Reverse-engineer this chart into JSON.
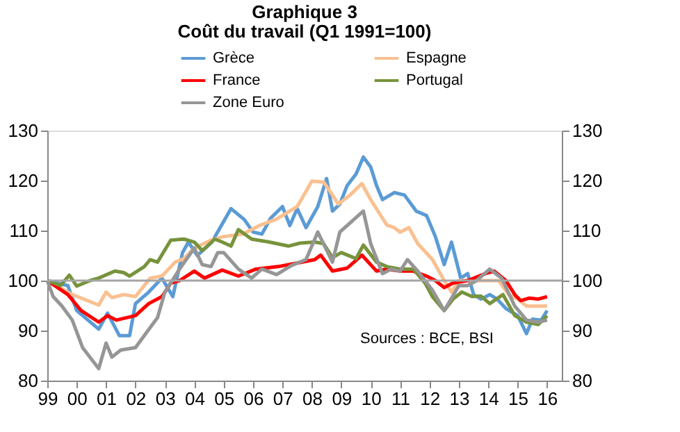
{
  "chart_data": {
    "type": "line",
    "title": "Graphique 3",
    "subtitle": "Coût du travail (Q1 1991=100)",
    "xlim": [
      1999,
      2016.5
    ],
    "xticks": [
      {
        "value": 1999,
        "label": "99"
      },
      {
        "value": 2000,
        "label": "00"
      },
      {
        "value": 2001,
        "label": "01"
      },
      {
        "value": 2002,
        "label": "02"
      },
      {
        "value": 2003,
        "label": "03"
      },
      {
        "value": 2004,
        "label": "04"
      },
      {
        "value": 2005,
        "label": "05"
      },
      {
        "value": 2006,
        "label": "06"
      },
      {
        "value": 2007,
        "label": "07"
      },
      {
        "value": 2008,
        "label": "08"
      },
      {
        "value": 2009,
        "label": "09"
      },
      {
        "value": 2010,
        "label": "10"
      },
      {
        "value": 2011,
        "label": "11"
      },
      {
        "value": 2012,
        "label": "12"
      },
      {
        "value": 2013,
        "label": "13"
      },
      {
        "value": 2014,
        "label": "14"
      },
      {
        "value": 2015,
        "label": "15"
      },
      {
        "value": 2016,
        "label": "16"
      }
    ],
    "ylim": [
      80,
      130
    ],
    "yticks": [
      80,
      90,
      100,
      110,
      120,
      130
    ],
    "y2lim": [
      80,
      130
    ],
    "y2ticks": [
      80,
      90,
      100,
      110,
      120,
      130
    ],
    "grid": false,
    "legend": "top",
    "line_style": "solid",
    "marker": "none",
    "ref_lines": [
      {
        "axis": "y",
        "value": 100,
        "color": "#a6a6a6"
      }
    ],
    "annotations": [
      "Sources :  BCE, BSI"
    ],
    "series": [
      {
        "name": "Grèce",
        "color": "#5b9bd5",
        "x": [
          1999,
          1999.7,
          2000,
          2000.75,
          2001.05,
          2001.45,
          2001.8,
          2002,
          2002.45,
          2002.9,
          2003.27,
          2003.6,
          2003.8,
          2004.1,
          2004.6,
          2005.25,
          2005.7,
          2006,
          2006.3,
          2006.6,
          2007,
          2007.25,
          2007.5,
          2007.8,
          2008.2,
          2008.5,
          2008.7,
          2008.95,
          2009.2,
          2009.5,
          2009.75,
          2010,
          2010.2,
          2010.4,
          2010.8,
          2011.15,
          2011.55,
          2011.9,
          2012.2,
          2012.5,
          2012.75,
          2013.06,
          2013.3,
          2013.5,
          2013.75,
          2014.05,
          2014.3,
          2014.6,
          2015,
          2015.3,
          2015.5,
          2015.8,
          2016
        ],
        "values": [
          100,
          99,
          94,
          90.3,
          93.5,
          89,
          89,
          95.4,
          97.7,
          100.5,
          96.8,
          105.6,
          107.7,
          105,
          107.7,
          114.4,
          112.2,
          109.7,
          109.3,
          112.5,
          114.8,
          111,
          114.4,
          110.6,
          114.8,
          120.4,
          113.9,
          115.3,
          119,
          121.3,
          124.7,
          122.7,
          119,
          116.2,
          117.6,
          117.1,
          113.9,
          113,
          108.8,
          103.2,
          107.7,
          100.5,
          101.4,
          97.2,
          96.3,
          97.2,
          96.3,
          94.4,
          93,
          89.4,
          92.3,
          92.1,
          94
        ]
      },
      {
        "name": "Espagne",
        "color": "#fac090",
        "x": [
          1999,
          1999.85,
          2000.75,
          2001,
          2001.2,
          2001.6,
          2002,
          2002.5,
          2002.9,
          2003.35,
          2003.65,
          2004,
          2004.57,
          2005,
          2005.65,
          2006.25,
          2006.8,
          2007.5,
          2008.0,
          2008.4,
          2008.6,
          2008.9,
          2009.3,
          2009.7,
          2010,
          2010.3,
          2010.55,
          2010.8,
          2011,
          2011.3,
          2011.6,
          2012.1,
          2012.5,
          2012.75,
          2013,
          2013.45,
          2013.9,
          2014.35,
          2014.7,
          2015,
          2015.3,
          2016
        ],
        "values": [
          100,
          97.2,
          95.1,
          97.7,
          96.6,
          97.2,
          96.8,
          100.5,
          100.9,
          103.7,
          104.4,
          106.5,
          108.1,
          108.8,
          109.3,
          111.1,
          112.3,
          114.8,
          119.9,
          119.7,
          118,
          115.3,
          117.1,
          119.4,
          116.2,
          113.4,
          111.1,
          110.6,
          109.7,
          110.6,
          107.4,
          104.2,
          100,
          97.7,
          100,
          100,
          100,
          100,
          97.2,
          96.3,
          94.9,
          94.9
        ]
      },
      {
        "name": "France",
        "color": "#ff0000",
        "x": [
          1999,
          1999.7,
          2000.15,
          2000.75,
          2001.05,
          2001.35,
          2002,
          2002.45,
          2002.9,
          2003.2,
          2003.5,
          2004,
          2004.35,
          2004.95,
          2005.5,
          2006.1,
          2006.85,
          2007.5,
          2008.1,
          2008.3,
          2008.7,
          2009.2,
          2009.7,
          2010.2,
          2010.55,
          2011,
          2011.45,
          2011.9,
          2012.2,
          2012.5,
          2012.8,
          2013.3,
          2013.9,
          2014.2,
          2014.6,
          2014.9,
          2015.1,
          2015.4,
          2015.7,
          2016
        ],
        "values": [
          100,
          97.2,
          94,
          91.7,
          93,
          92.1,
          93,
          95.4,
          96.8,
          99.5,
          100,
          101.9,
          100.5,
          102.1,
          100.9,
          102.3,
          102.8,
          103.5,
          104.2,
          105.1,
          101.9,
          102.5,
          105.1,
          101.9,
          102.3,
          101.9,
          101.9,
          100.9,
          100,
          98.6,
          99.5,
          100,
          101.4,
          101.9,
          100,
          97.2,
          96,
          96.5,
          96.3,
          96.8
        ]
      },
      {
        "name": "Portugal",
        "color": "#77933c",
        "x": [
          1999,
          1999.45,
          1999.75,
          2000,
          2000.45,
          2000.75,
          2001.3,
          2001.6,
          2001.8,
          2002.3,
          2002.5,
          2002.75,
          2003.2,
          2003.65,
          2004,
          2004.27,
          2004.7,
          2004.95,
          2005.25,
          2005.5,
          2005.95,
          2006.55,
          2007.2,
          2007.6,
          2008.1,
          2008.4,
          2008.7,
          2009.0,
          2009.5,
          2009.75,
          2010.2,
          2010.55,
          2011,
          2011.45,
          2011.85,
          2012.1,
          2012.5,
          2012.8,
          2013.1,
          2013.45,
          2013.75,
          2014.05,
          2014.5,
          2014.9,
          2015.3,
          2015.7,
          2016
        ],
        "values": [
          100,
          99,
          101.1,
          98.9,
          100,
          100.5,
          101.9,
          101.6,
          100.9,
          102.8,
          104.2,
          103.7,
          108.1,
          108.3,
          107.7,
          106,
          108.3,
          107.7,
          106.9,
          110.2,
          108.3,
          107.7,
          106.9,
          107.5,
          107.7,
          107.4,
          104.6,
          105.6,
          104.4,
          107.1,
          103.7,
          102.8,
          102.3,
          102.3,
          99.5,
          96.8,
          94,
          96.3,
          97.7,
          96.8,
          96.9,
          95.4,
          97.2,
          93,
          91.7,
          91.2,
          93
        ]
      },
      {
        "name": "Zone Euro",
        "color": "#969696",
        "x": [
          1999,
          1999.2,
          1999.5,
          1999.85,
          2000.2,
          2000.45,
          2000.75,
          2001,
          2001.2,
          2001.5,
          2002,
          2002.35,
          2002.75,
          2003,
          2003.5,
          2004,
          2004.27,
          2004.57,
          2004.8,
          2005,
          2005.5,
          2005.95,
          2006.3,
          2006.8,
          2007.3,
          2007.8,
          2008.2,
          2008.7,
          2008.95,
          2009.75,
          2010,
          2010.4,
          2010.7,
          2011,
          2011.25,
          2011.6,
          2012.1,
          2012.5,
          2013,
          2013.3,
          2013.6,
          2014.05,
          2014.45,
          2014.9,
          2015.3,
          2015.7,
          2016
        ],
        "values": [
          100,
          96.8,
          94.9,
          92.1,
          86.6,
          84.7,
          82.4,
          87.5,
          84.7,
          86.1,
          86.6,
          89.4,
          92.6,
          97.7,
          102.3,
          106.5,
          103.2,
          102.8,
          105.6,
          105.6,
          102.3,
          100.5,
          102.3,
          101.2,
          103,
          104.2,
          109.7,
          103.7,
          109.7,
          113.9,
          107.4,
          101.4,
          102.3,
          101.9,
          104.2,
          101.9,
          98.1,
          94,
          99,
          99,
          100,
          102.3,
          100.5,
          94.9,
          92.1,
          91.7,
          92.1
        ]
      }
    ]
  }
}
